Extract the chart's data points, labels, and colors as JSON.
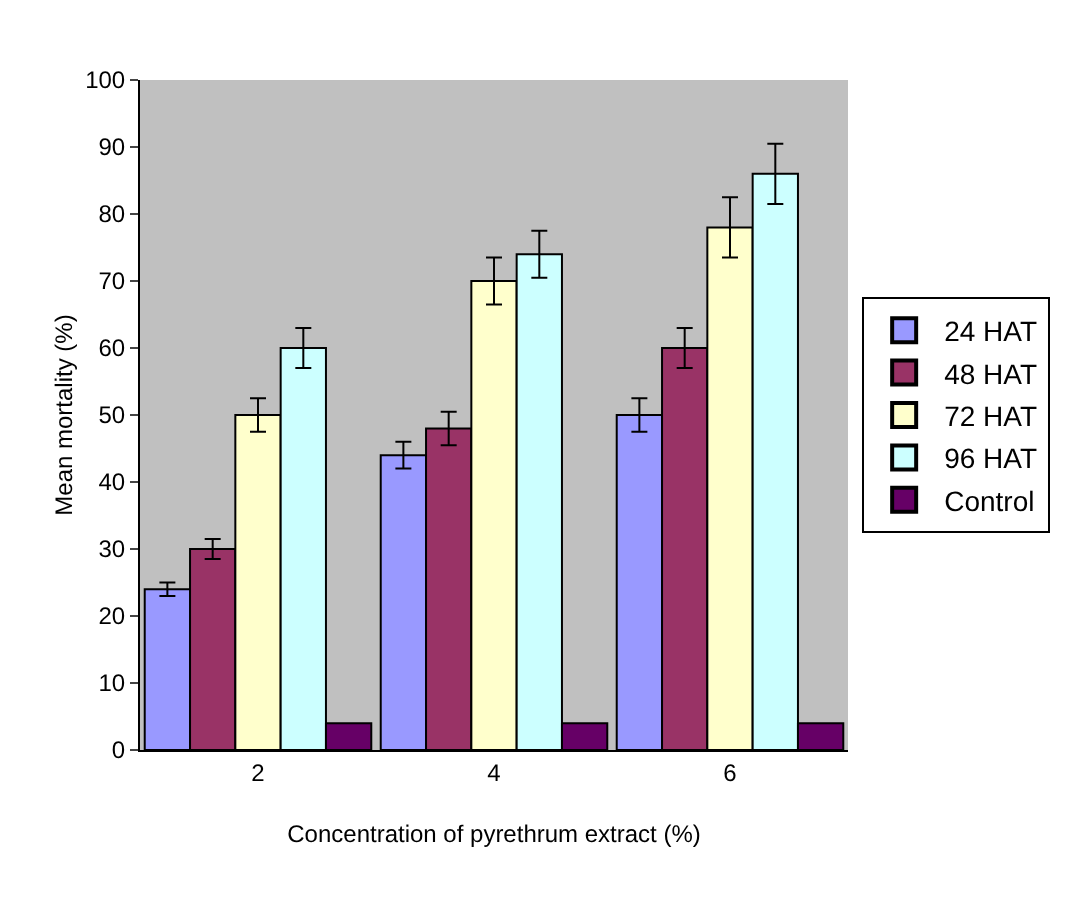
{
  "chart_data": {
    "type": "bar",
    "xlabel": "Concentration of pyrethrum extract (%)",
    "ylabel": "Mean mortality (%)",
    "categories": [
      "2",
      "4",
      "6"
    ],
    "series": [
      {
        "name": "24 HAT",
        "color": "#9999ff",
        "values": [
          24,
          44,
          50
        ],
        "errors": [
          1,
          2,
          2.5
        ]
      },
      {
        "name": "48 HAT",
        "color": "#993366",
        "values": [
          30,
          48,
          60
        ],
        "errors": [
          1.5,
          2.5,
          3
        ]
      },
      {
        "name": "72 HAT",
        "color": "#ffffcc",
        "values": [
          50,
          70,
          78
        ],
        "errors": [
          2.5,
          3.5,
          4.5
        ]
      },
      {
        "name": "96 HAT",
        "color": "#ccffff",
        "values": [
          60,
          74,
          86
        ],
        "errors": [
          3,
          3.5,
          4.5
        ]
      },
      {
        "name": "Control",
        "color": "#660066",
        "values": [
          4,
          4,
          4
        ]
      }
    ],
    "ylim": [
      0,
      100
    ],
    "yticks": [
      0,
      10,
      20,
      30,
      40,
      50,
      60,
      70,
      80,
      90,
      100
    ],
    "grid": false,
    "legend": "right"
  }
}
